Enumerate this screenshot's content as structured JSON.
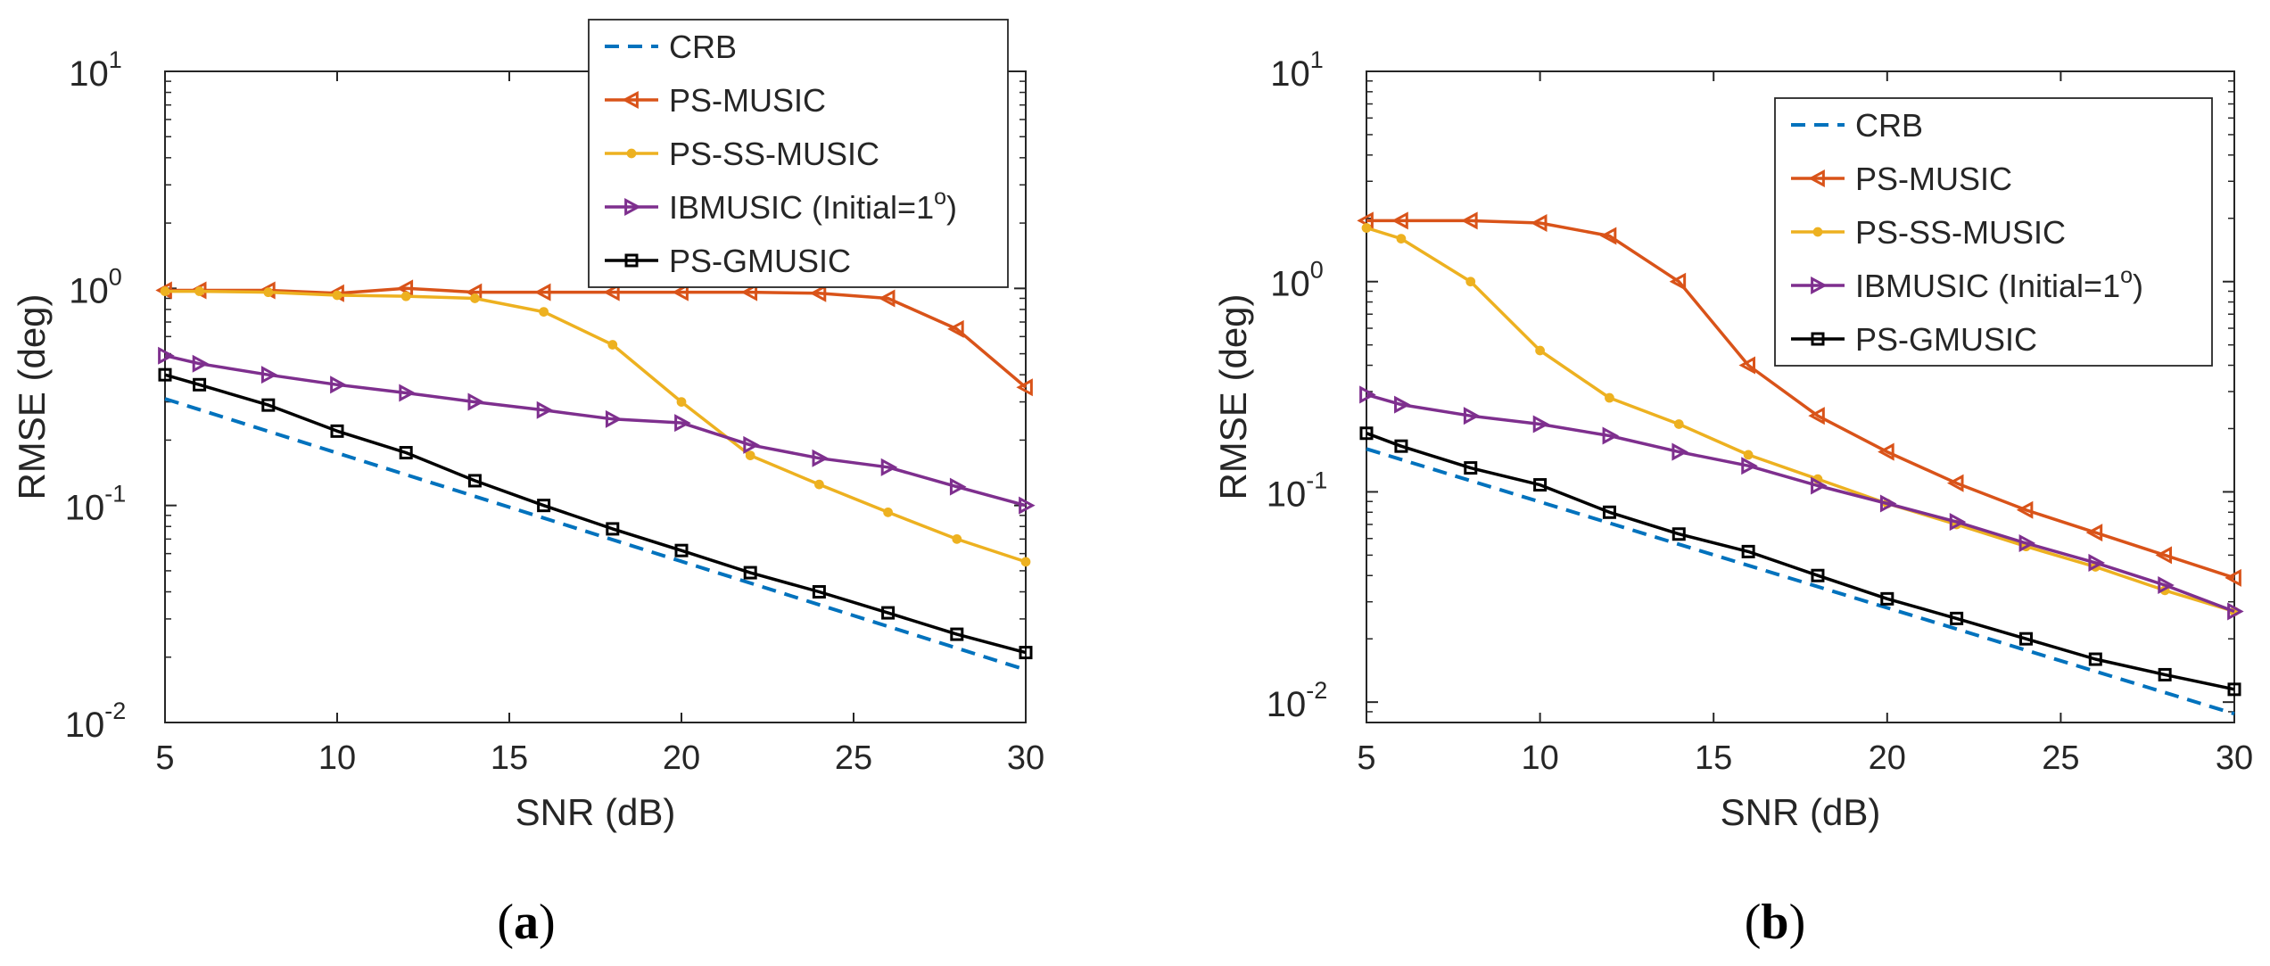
{
  "panels": [
    {
      "caption": {
        "open": "(",
        "letter": "a",
        "close": ")"
      },
      "chart_data": {
        "type": "line",
        "yscale": "log",
        "xlabel": "SNR (dB)",
        "ylabel": "RMSE (deg)",
        "xlim": [
          5,
          30
        ],
        "ylim": [
          0.01,
          10
        ],
        "xticks": [
          5,
          10,
          15,
          20,
          25,
          30
        ],
        "yticks": [
          {
            "value": 0.01,
            "base": "10",
            "exp": "-2"
          },
          {
            "value": 0.1,
            "base": "10",
            "exp": "-1"
          },
          {
            "value": 1,
            "base": "10",
            "exp": "0"
          },
          {
            "value": 10,
            "base": "10",
            "exp": "1"
          }
        ],
        "legend": {
          "position": "top-right"
        },
        "series": [
          {
            "name": "CRB",
            "color": "#0072BD",
            "marker": "none",
            "dash": true,
            "x": [
              5,
              30
            ],
            "values": [
              0.31,
              0.0175
            ]
          },
          {
            "name": "PS-MUSIC",
            "color": "#D95319",
            "marker": "triangle-left",
            "x": [
              5,
              6,
              8,
              10,
              12,
              14,
              16,
              18,
              20,
              22,
              24,
              26,
              28,
              30
            ],
            "values": [
              0.98,
              0.98,
              0.98,
              0.95,
              1.0,
              0.96,
              0.96,
              0.96,
              0.96,
              0.96,
              0.95,
              0.9,
              0.65,
              0.35
            ]
          },
          {
            "name": "PS-SS-MUSIC",
            "color": "#EDB120",
            "marker": "dot",
            "x": [
              5,
              6,
              8,
              10,
              12,
              14,
              16,
              18,
              20,
              22,
              24,
              26,
              28,
              30
            ],
            "values": [
              0.97,
              0.97,
              0.96,
              0.93,
              0.92,
              0.9,
              0.78,
              0.55,
              0.3,
              0.17,
              0.125,
              0.093,
              0.07,
              0.055
            ]
          },
          {
            "name": "IBMUSIC (Initial=1",
            "name_sup": "o",
            "name_suffix": ")",
            "color": "#7E2F8E",
            "marker": "triangle-right",
            "x": [
              5,
              6,
              8,
              10,
              12,
              14,
              16,
              18,
              20,
              22,
              24,
              26,
              28,
              30
            ],
            "values": [
              0.49,
              0.45,
              0.4,
              0.36,
              0.33,
              0.3,
              0.275,
              0.25,
              0.24,
              0.19,
              0.165,
              0.15,
              0.122,
              0.1
            ]
          },
          {
            "name": "PS-GMUSIC",
            "color": "#000000",
            "marker": "square",
            "x": [
              5,
              6,
              8,
              10,
              12,
              14,
              16,
              18,
              20,
              22,
              24,
              26,
              28,
              30
            ],
            "values": [
              0.4,
              0.36,
              0.29,
              0.22,
              0.175,
              0.13,
              0.1,
              0.078,
              0.062,
              0.049,
              0.04,
              0.032,
              0.0255,
              0.021
            ]
          }
        ]
      }
    },
    {
      "caption": {
        "open": "(",
        "letter": "b",
        "close": ")"
      },
      "chart_data": {
        "type": "line",
        "yscale": "log",
        "xlabel": "SNR (dB)",
        "ylabel": "RMSE (deg)",
        "xlim": [
          5,
          30
        ],
        "ylim": [
          0.008,
          10
        ],
        "xticks": [
          5,
          10,
          15,
          20,
          25,
          30
        ],
        "yticks": [
          {
            "value": 0.01,
            "base": "10",
            "exp": "-2"
          },
          {
            "value": 0.1,
            "base": "10",
            "exp": "-1"
          },
          {
            "value": 1,
            "base": "10",
            "exp": "0"
          },
          {
            "value": 10,
            "base": "10",
            "exp": "1"
          }
        ],
        "legend": {
          "position": "top-right"
        },
        "series": [
          {
            "name": "CRB",
            "color": "#0072BD",
            "marker": "none",
            "dash": true,
            "x": [
              5,
              30
            ],
            "values": [
              0.16,
              0.0088
            ]
          },
          {
            "name": "PS-MUSIC",
            "color": "#D95319",
            "marker": "triangle-left",
            "x": [
              5,
              6,
              8,
              10,
              12,
              14,
              16,
              18,
              20,
              22,
              24,
              26,
              28,
              30
            ],
            "values": [
              1.95,
              1.95,
              1.95,
              1.9,
              1.65,
              1.0,
              0.4,
              0.23,
              0.155,
              0.11,
              0.082,
              0.064,
              0.05,
              0.039
            ]
          },
          {
            "name": "PS-SS-MUSIC",
            "color": "#EDB120",
            "marker": "dot",
            "x": [
              5,
              6,
              8,
              10,
              12,
              14,
              16,
              18,
              20,
              22,
              24,
              26,
              28,
              30
            ],
            "values": [
              1.8,
              1.6,
              1.0,
              0.47,
              0.28,
              0.21,
              0.15,
              0.115,
              0.088,
              0.07,
              0.055,
              0.044,
              0.034,
              0.027
            ]
          },
          {
            "name": "IBMUSIC (Initial=1",
            "name_sup": "o",
            "name_suffix": ")",
            "color": "#7E2F8E",
            "marker": "triangle-right",
            "x": [
              5,
              6,
              8,
              10,
              12,
              14,
              16,
              18,
              20,
              22,
              24,
              26,
              28,
              30
            ],
            "values": [
              0.29,
              0.26,
              0.23,
              0.21,
              0.185,
              0.155,
              0.133,
              0.107,
              0.088,
              0.072,
              0.057,
              0.046,
              0.036,
              0.027
            ]
          },
          {
            "name": "PS-GMUSIC",
            "color": "#000000",
            "marker": "square",
            "x": [
              5,
              6,
              8,
              10,
              12,
              14,
              16,
              18,
              20,
              22,
              24,
              26,
              28,
              30
            ],
            "values": [
              0.19,
              0.165,
              0.13,
              0.108,
              0.08,
              0.063,
              0.052,
              0.04,
              0.031,
              0.025,
              0.02,
              0.016,
              0.0135,
              0.0115
            ]
          }
        ]
      }
    }
  ]
}
